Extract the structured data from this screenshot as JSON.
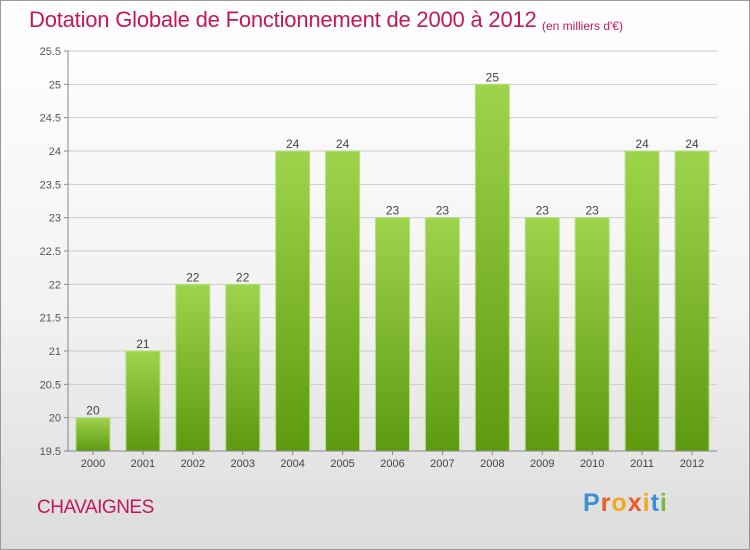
{
  "header": {
    "title": "Dotation Globale de Fonctionnement de 2000 à 2012",
    "subtitle": "(en milliers d'€)"
  },
  "footer": {
    "commune": "CHAVAIGNES",
    "logo_text": "Proxiti"
  },
  "colors": {
    "accent": "#c2185b",
    "bar_top": "#9ed44c",
    "bar_bottom": "#5d9a10",
    "grid": "#cccccc",
    "logo": [
      "#3a8fd8",
      "#e85d2a",
      "#f2a81d",
      "#e85d2a",
      "#f2a81d",
      "#3a8fd8",
      "#7cb342"
    ]
  },
  "chart_data": {
    "type": "bar",
    "title": "Dotation Globale de Fonctionnement de 2000 à 2012",
    "subtitle": "(en milliers d'€)",
    "categories": [
      "2000",
      "2001",
      "2002",
      "2003",
      "2004",
      "2005",
      "2006",
      "2007",
      "2008",
      "2009",
      "2010",
      "2011",
      "2012"
    ],
    "values": [
      20,
      21,
      22,
      22,
      24,
      24,
      23,
      23,
      25,
      23,
      23,
      24,
      24
    ],
    "data_labels": [
      "20",
      "21",
      "22",
      "22",
      "24",
      "24",
      "23",
      "23",
      "25",
      "23",
      "23",
      "24",
      "24"
    ],
    "yticks": [
      "19.5",
      "20",
      "20.5",
      "21",
      "21.5",
      "22",
      "22.5",
      "23",
      "23.5",
      "24",
      "24.5",
      "25",
      "25.5"
    ],
    "ylim": [
      19.5,
      25.5
    ],
    "xlabel": "",
    "ylabel": "",
    "grid": true
  }
}
